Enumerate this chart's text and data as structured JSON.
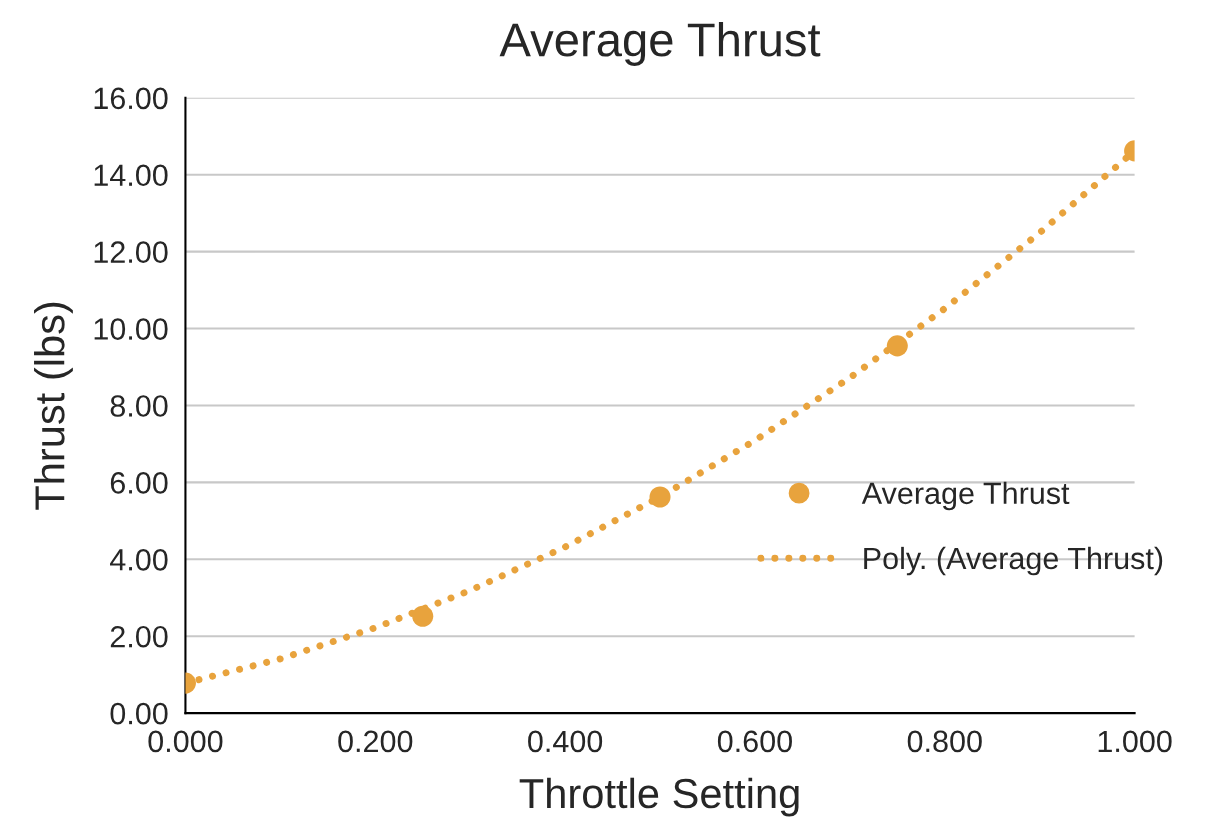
{
  "chart_data": {
    "type": "scatter",
    "title": "Average Thrust",
    "xlabel": "Throttle Setting",
    "ylabel": "Thrust (lbs)",
    "series": [
      {
        "name": "Average Thrust",
        "color": "#e8a33d",
        "marker": "circle",
        "x": [
          0.0,
          0.25,
          0.5,
          0.75,
          1.0
        ],
        "values": [
          0.78,
          2.52,
          5.62,
          9.55,
          14.62
        ]
      },
      {
        "name": "Poly. (Average Thrust)",
        "type": "line",
        "color": "#e8a33d",
        "line_style": "dotted",
        "marker": "none",
        "x": [
          0.0,
          0.1,
          0.2,
          0.3,
          0.4,
          0.5,
          0.6,
          0.7,
          0.8,
          0.9,
          1.0
        ],
        "values": [
          0.78,
          1.41,
          2.22,
          3.19,
          4.32,
          5.62,
          7.09,
          8.72,
          10.52,
          12.49,
          14.62
        ]
      }
    ],
    "xlim": [
      0,
      1
    ],
    "ylim": [
      0,
      16
    ],
    "xticks": [
      {
        "value": 0,
        "label": "0.000"
      },
      {
        "value": 0.2,
        "label": "0.200"
      },
      {
        "value": 0.4,
        "label": "0.400"
      },
      {
        "value": 0.6,
        "label": "0.600"
      },
      {
        "value": 0.8,
        "label": "0.800"
      },
      {
        "value": 1,
        "label": "1.000"
      }
    ],
    "yticks": [
      {
        "value": 0,
        "label": "0.00"
      },
      {
        "value": 2,
        "label": "2.00"
      },
      {
        "value": 4,
        "label": "4.00"
      },
      {
        "value": 6,
        "label": "6.00"
      },
      {
        "value": 8,
        "label": "8.00"
      },
      {
        "value": 10,
        "label": "10.00"
      },
      {
        "value": 12,
        "label": "12.00"
      },
      {
        "value": 14,
        "label": "14.00"
      },
      {
        "value": 16,
        "label": "16.00"
      }
    ],
    "grid": "y",
    "legend": "center right"
  }
}
